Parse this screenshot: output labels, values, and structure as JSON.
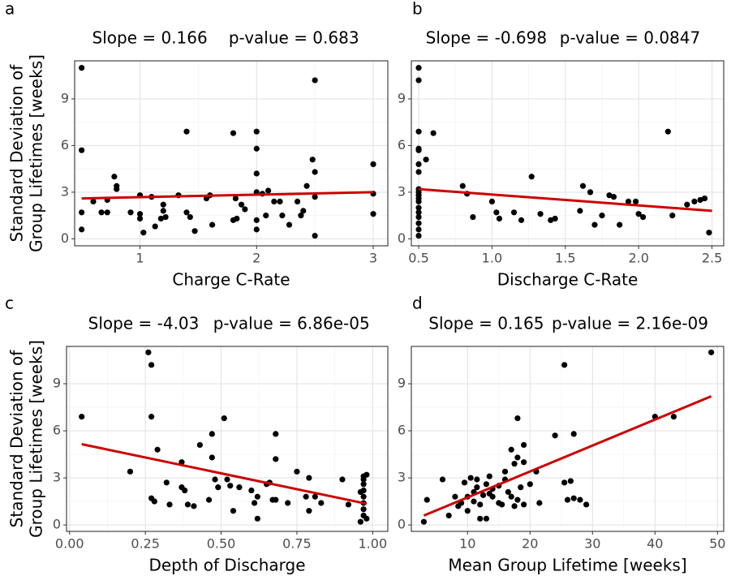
{
  "chart_data": [
    {
      "type": "scatter",
      "panel_label": "a",
      "annotations": [
        "Slope = 0.166",
        "p-value = 0.683"
      ],
      "x_label": "Charge C-Rate",
      "y_label": [
        "Standard Deviation of",
        "Group Lifetimes [weeks]"
      ],
      "x": [
        0.5,
        0.5,
        0.5,
        0.5,
        0.6,
        0.67,
        0.72,
        0.72,
        0.78,
        0.8,
        0.8,
        0.92,
        1,
        1,
        1,
        1.03,
        1.1,
        1.13,
        1.18,
        1.2,
        1.2,
        1.22,
        1.33,
        1.4,
        1.4,
        1.43,
        1.47,
        1.57,
        1.6,
        1.62,
        1.8,
        1.8,
        1.82,
        1.83,
        1.87,
        1.9,
        2,
        2,
        2,
        2,
        2,
        2,
        2.05,
        2.08,
        2.1,
        2.15,
        2.2,
        2.22,
        2.28,
        2.35,
        2.38,
        2.4,
        2.43,
        2.48,
        2.5,
        2.5,
        2.5,
        2.5,
        3,
        3,
        3
      ],
      "y": [
        11,
        5.7,
        1.7,
        0.6,
        2.4,
        1.7,
        1.7,
        2.5,
        4.0,
        3.4,
        3.2,
        1.7,
        2.8,
        1.6,
        1.3,
        0.4,
        2.7,
        0.8,
        1.3,
        1.8,
        2.2,
        1.4,
        2.8,
        6.9,
        1.7,
        1.4,
        0.5,
        2.6,
        2.8,
        0.9,
        6.8,
        1.2,
        2.6,
        1.3,
        2.2,
        1.9,
        6.9,
        5.8,
        4.2,
        3.0,
        1.2,
        0.6,
        2.9,
        1.5,
        3.1,
        2.4,
        2.4,
        1.5,
        0.9,
        2.4,
        1.5,
        1.8,
        3.4,
        5.1,
        10.2,
        4.3,
        2.7,
        0.2,
        4.8,
        2.9,
        1.6
      ],
      "color": "#000000",
      "fit_line": {
        "x": [
          0.5,
          3
        ],
        "y": [
          2.6,
          3.0
        ],
        "color": "#cc0000"
      },
      "xlim": [
        0.44,
        3.125
      ],
      "ylim": [
        -0.45,
        11.45
      ],
      "xticks": [
        1,
        2,
        3
      ],
      "yticks": [
        0,
        3,
        6,
        9
      ],
      "grid": true
    },
    {
      "type": "scatter",
      "panel_label": "b",
      "annotations": [
        "Slope = -0.698",
        "p-value = 0.0847"
      ],
      "x_label": "Discharge C-Rate",
      "x": [
        0.5,
        0.5,
        0.5,
        0.5,
        0.5,
        0.5,
        0.5,
        0.5,
        0.5,
        0.5,
        0.5,
        0.5,
        0.5,
        0.5,
        0.5,
        0.5,
        0.5,
        0.5,
        0.55,
        0.6,
        0.8,
        0.83,
        0.87,
        1,
        1.03,
        1.05,
        1.15,
        1.2,
        1.27,
        1.33,
        1.4,
        1.43,
        1.6,
        1.62,
        1.67,
        1.7,
        1.75,
        1.8,
        1.83,
        1.87,
        1.93,
        1.98,
        2,
        2.03,
        2.2,
        2.23,
        2.33,
        2.38,
        2.42,
        2.45,
        2.48
      ],
      "y": [
        11,
        10.2,
        6.9,
        5.8,
        5.7,
        4.8,
        4.3,
        3.2,
        3.0,
        2.8,
        2.6,
        2.4,
        2.0,
        1.7,
        1.4,
        1.0,
        0.6,
        0.2,
        5.1,
        6.8,
        3.4,
        2.9,
        1.4,
        2.4,
        1.7,
        1.3,
        1.7,
        1.2,
        4.0,
        1.6,
        1.2,
        1.3,
        1.8,
        3.4,
        3.0,
        0.9,
        1.5,
        2.8,
        2.7,
        0.9,
        2.4,
        2.4,
        1.6,
        1.4,
        6.9,
        1.5,
        2.2,
        2.4,
        2.5,
        2.6,
        0.4
      ],
      "color": "#000000",
      "fit_line": {
        "x": [
          0.5,
          2.5
        ],
        "y": [
          3.2,
          1.8
        ],
        "color": "#cc0000"
      },
      "xlim": [
        0.45,
        2.58
      ],
      "ylim": [
        -0.45,
        11.45
      ],
      "xticks": [
        0.5,
        {
          "value": 1,
          "label": "1.0"
        },
        1.5,
        {
          "value": 2,
          "label": "2.0"
        },
        2.5
      ],
      "yticks": [
        0,
        3,
        6,
        9
      ],
      "grid": true
    },
    {
      "type": "scatter",
      "panel_label": "c",
      "annotations": [
        "Slope = -4.03",
        "p-value = 6.86e-05"
      ],
      "x_label": "Depth of Discharge",
      "y_label": [
        "Standard Deviation of",
        "Group Lifetimes [weeks]"
      ],
      "x": [
        0.04,
        0.2,
        0.26,
        0.27,
        0.27,
        0.27,
        0.28,
        0.29,
        0.32,
        0.33,
        0.37,
        0.37,
        0.38,
        0.39,
        0.41,
        0.43,
        0.46,
        0.47,
        0.47,
        0.48,
        0.49,
        0.51,
        0.52,
        0.53,
        0.54,
        0.56,
        0.6,
        0.61,
        0.62,
        0.62,
        0.65,
        0.66,
        0.67,
        0.68,
        0.68,
        0.68,
        0.72,
        0.75,
        0.78,
        0.79,
        0.79,
        0.81,
        0.83,
        0.9,
        0.92,
        0.96,
        0.97,
        0.97,
        0.97,
        0.97,
        0.97,
        0.97,
        0.97,
        0.97,
        0.96,
        0.98,
        0.98
      ],
      "y": [
        6.9,
        3.4,
        11,
        10.2,
        6.9,
        1.7,
        1.5,
        4.8,
        2.7,
        1.3,
        4.0,
        2.4,
        2.2,
        1.3,
        1.2,
        5.1,
        1.6,
        5.8,
        4.3,
        2.9,
        2.4,
        6.8,
        2.9,
        2.5,
        0.9,
        2.4,
        2.2,
        1.4,
        1.8,
        0.4,
        2.6,
        2.7,
        1.6,
        5.8,
        4.2,
        1.6,
        1.4,
        3.4,
        1.8,
        3.0,
        0.9,
        1.8,
        1.4,
        2.9,
        1.3,
        2.1,
        3.1,
        2.9,
        2.6,
        2.2,
        1.8,
        1.4,
        1.0,
        0.6,
        0.2,
        3.2,
        0.4
      ],
      "color": "#000000",
      "fit_line": {
        "x": [
          0.04,
          0.98
        ],
        "y": [
          5.15,
          1.35
        ],
        "color": "#cc0000"
      },
      "xlim": [
        -0.01,
        1.05
      ],
      "ylim": [
        -0.41,
        11.38
      ],
      "xticks": [
        {
          "value": 0,
          "label": "0.00"
        },
        0.25,
        {
          "value": 0.5,
          "label": "0.50"
        },
        0.75,
        {
          "value": 1,
          "label": "1.00"
        }
      ],
      "yticks": [
        0,
        3,
        6,
        9
      ],
      "grid": true
    },
    {
      "type": "scatter",
      "panel_label": "d",
      "annotations": [
        "Slope = 0.165",
        "p-value = 2.16e-09"
      ],
      "x_label": "Mean Group Lifetime [weeks]",
      "x": [
        3,
        3.5,
        6,
        7,
        8,
        8.5,
        9,
        9.5,
        10,
        10,
        10.5,
        11,
        11,
        11.5,
        11.5,
        12,
        12,
        12.5,
        13,
        13,
        13.5,
        13.5,
        14,
        14,
        15,
        15,
        15.5,
        16,
        16,
        16.5,
        17,
        17,
        17.5,
        17.5,
        18,
        18,
        18,
        18.5,
        19,
        19,
        19,
        20,
        21,
        21.5,
        24,
        25.5,
        25.5,
        26,
        26.5,
        27,
        27,
        28,
        29,
        40,
        43,
        49
      ],
      "y": [
        0.2,
        1.6,
        2.9,
        0.6,
        1.8,
        1.2,
        1.4,
        2.7,
        1.8,
        0.9,
        3.0,
        2.1,
        1.5,
        2.9,
        2.4,
        1.3,
        0.4,
        1.9,
        2.6,
        0.4,
        3.1,
        2.0,
        1.8,
        2.3,
        2.5,
        1.4,
        1.3,
        3.4,
        2.9,
        2.1,
        4.8,
        1.8,
        3.9,
        1.2,
        6.8,
        4.3,
        1.6,
        2.4,
        5.1,
        4.0,
        1.3,
        2.6,
        3.4,
        1.4,
        5.7,
        10.2,
        2.7,
        1.6,
        2.8,
        5.8,
        1.7,
        1.6,
        1.3,
        6.9,
        6.9,
        11
      ],
      "color": "#000000",
      "fit_line": {
        "x": [
          3,
          49
        ],
        "y": [
          0.6,
          8.2
        ],
        "color": "#cc0000"
      },
      "xlim": [
        1,
        51
      ],
      "ylim": [
        -0.41,
        11.38
      ],
      "xticks": [
        10,
        20,
        30,
        40,
        50
      ],
      "yticks": [
        0,
        3,
        6,
        9
      ],
      "grid": true
    }
  ]
}
